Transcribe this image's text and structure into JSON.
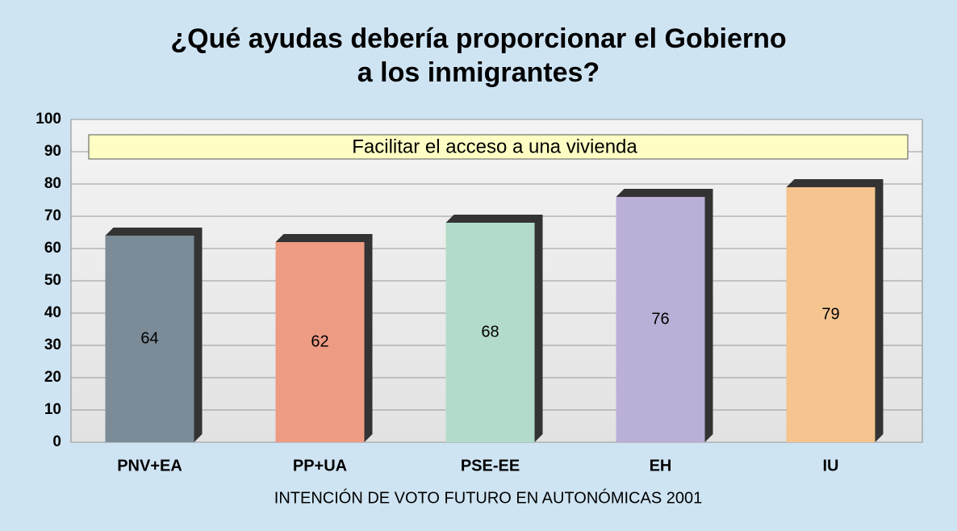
{
  "chart_data": {
    "type": "bar",
    "title": [
      "¿Qué ayudas debería proporcionar el Gobierno",
      "a los inmigrantes?"
    ],
    "annotation": "Facilitar el acceso a una vivienda",
    "x_label": "INTENCIÓN DE VOTO FUTURO EN AUTONÓMICAS 2001",
    "categories": [
      "PNV+EA",
      "PP+UA",
      "PSE-EE",
      "EH",
      "IU"
    ],
    "values": [
      64,
      62,
      68,
      76,
      79
    ],
    "colors": [
      "#7b8b97",
      "#ee9b84",
      "#b2dcc9",
      "#baafd6",
      "#f5c48f"
    ],
    "ylim": [
      0,
      100
    ],
    "yticks": [
      0,
      10,
      20,
      30,
      40,
      50,
      60,
      70,
      80,
      90,
      100
    ],
    "grid": true
  }
}
